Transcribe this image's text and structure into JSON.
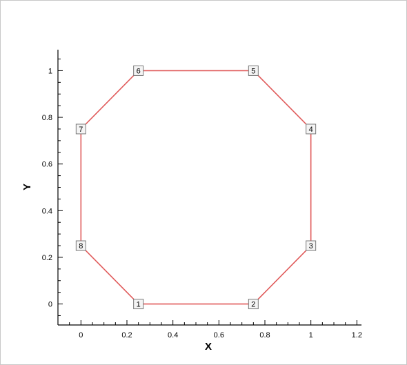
{
  "chart_data": {
    "type": "line",
    "title": "",
    "xlabel": "X",
    "ylabel": "Y",
    "xlim": [
      -0.1,
      1.22
    ],
    "ylim": [
      -0.09,
      1.09
    ],
    "x_ticks": [
      0,
      0.2,
      0.4,
      0.6,
      0.8,
      1,
      1.2
    ],
    "x_tick_labels": [
      "0",
      "0.2",
      "0.4",
      "0.6",
      "0.8",
      "1",
      "1.2"
    ],
    "y_ticks": [
      0,
      0.2,
      0.4,
      0.6,
      0.8,
      1
    ],
    "y_tick_labels": [
      "0",
      "0.2",
      "0.4",
      "0.6",
      "0.8",
      "1"
    ],
    "grid": false,
    "closed": true,
    "line_color": "#e05a5a",
    "series": [
      {
        "points": [
          {
            "label": "1",
            "x": 0.25,
            "y": 0
          },
          {
            "label": "2",
            "x": 0.75,
            "y": 0
          },
          {
            "label": "3",
            "x": 1,
            "y": 0.25
          },
          {
            "label": "4",
            "x": 1,
            "y": 0.75
          },
          {
            "label": "5",
            "x": 0.75,
            "y": 1
          },
          {
            "label": "6",
            "x": 0.25,
            "y": 1
          },
          {
            "label": "7",
            "x": 0,
            "y": 0.75
          },
          {
            "label": "8",
            "x": 0,
            "y": 0.25
          }
        ]
      }
    ]
  }
}
